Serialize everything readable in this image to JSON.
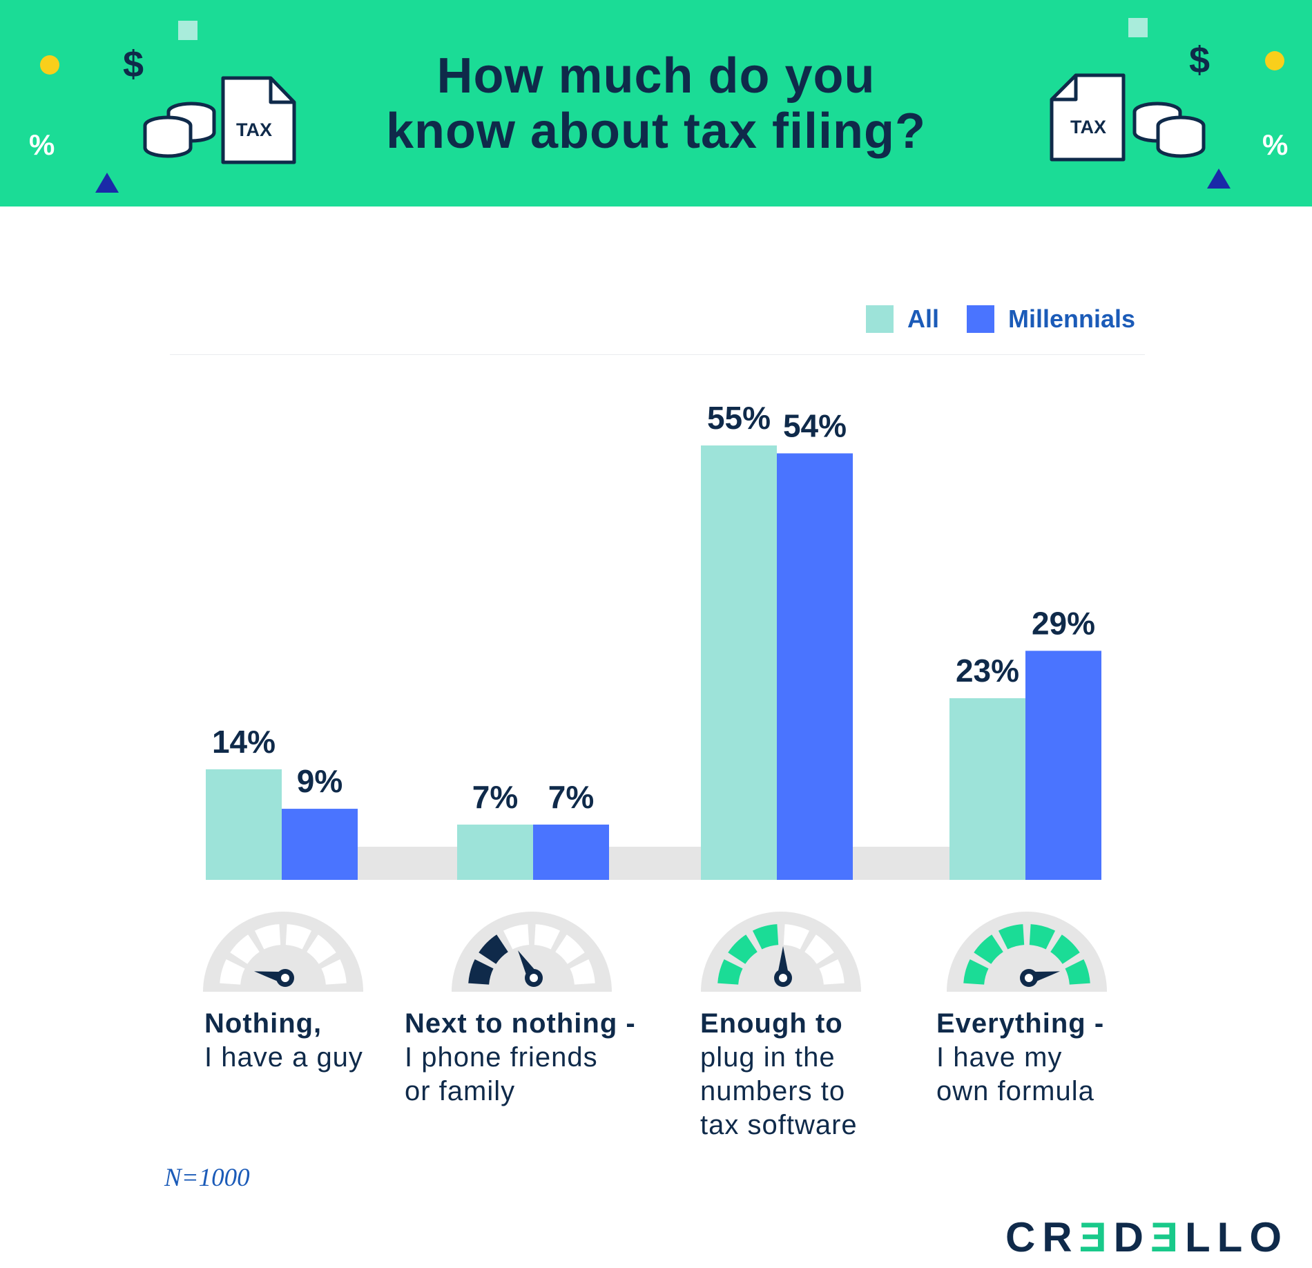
{
  "header": {
    "title_line1": "How much do you",
    "title_line2": "know about tax filing?",
    "doc_label_left": "TAX",
    "doc_label_right": "TAX",
    "dollar_symbol": "$",
    "percent_symbol": "%"
  },
  "colors": {
    "header_bg": "#1bdc96",
    "all": "#9de3d9",
    "millennials": "#4a74ff",
    "baseline": "#e5e5e5",
    "gauge_bg": "#e6e6e6",
    "gauge_low": "#0f2a4a",
    "gauge_high": "#1bdc96"
  },
  "legend": {
    "all_label": "All",
    "millennials_label": "Millennials"
  },
  "chart_data": {
    "type": "bar",
    "title": "How much do you know about tax filing?",
    "categories": [
      "Nothing, I have a guy",
      "Next to nothing - I phone friends or family",
      "Enough to plug in the numbers to tax software",
      "Everything - I have my own formula"
    ],
    "series": [
      {
        "name": "All",
        "values": [
          14,
          7,
          55,
          23
        ],
        "labels": [
          "14%",
          "7%",
          "55%",
          "23%"
        ]
      },
      {
        "name": "Millennials",
        "values": [
          9,
          7,
          54,
          29
        ],
        "labels": [
          "9%",
          "7%",
          "54%",
          "29%"
        ]
      }
    ],
    "ylim": [
      0,
      55
    ],
    "unit": "%",
    "xlabel": "",
    "ylabel": "",
    "legend_position": "top-right",
    "grid": false
  },
  "categories": [
    {
      "lead": "Nothing,",
      "rest": "I have a guy",
      "gauge_level": 0
    },
    {
      "lead": "Next to nothing -",
      "rest": "I phone friends\nor family",
      "gauge_level": 2
    },
    {
      "lead": "Enough to",
      "rest": "plug in the\nnumbers to\ntax software",
      "gauge_level": 3
    },
    {
      "lead": "Everything -",
      "rest": "I have my\nown formula",
      "gauge_level": 6
    }
  ],
  "footnote": "N=1000",
  "brand": {
    "part1": "CR",
    "part2": "Ǝ",
    "part3": "D",
    "part4": "Ǝ",
    "part5": "LLO"
  }
}
